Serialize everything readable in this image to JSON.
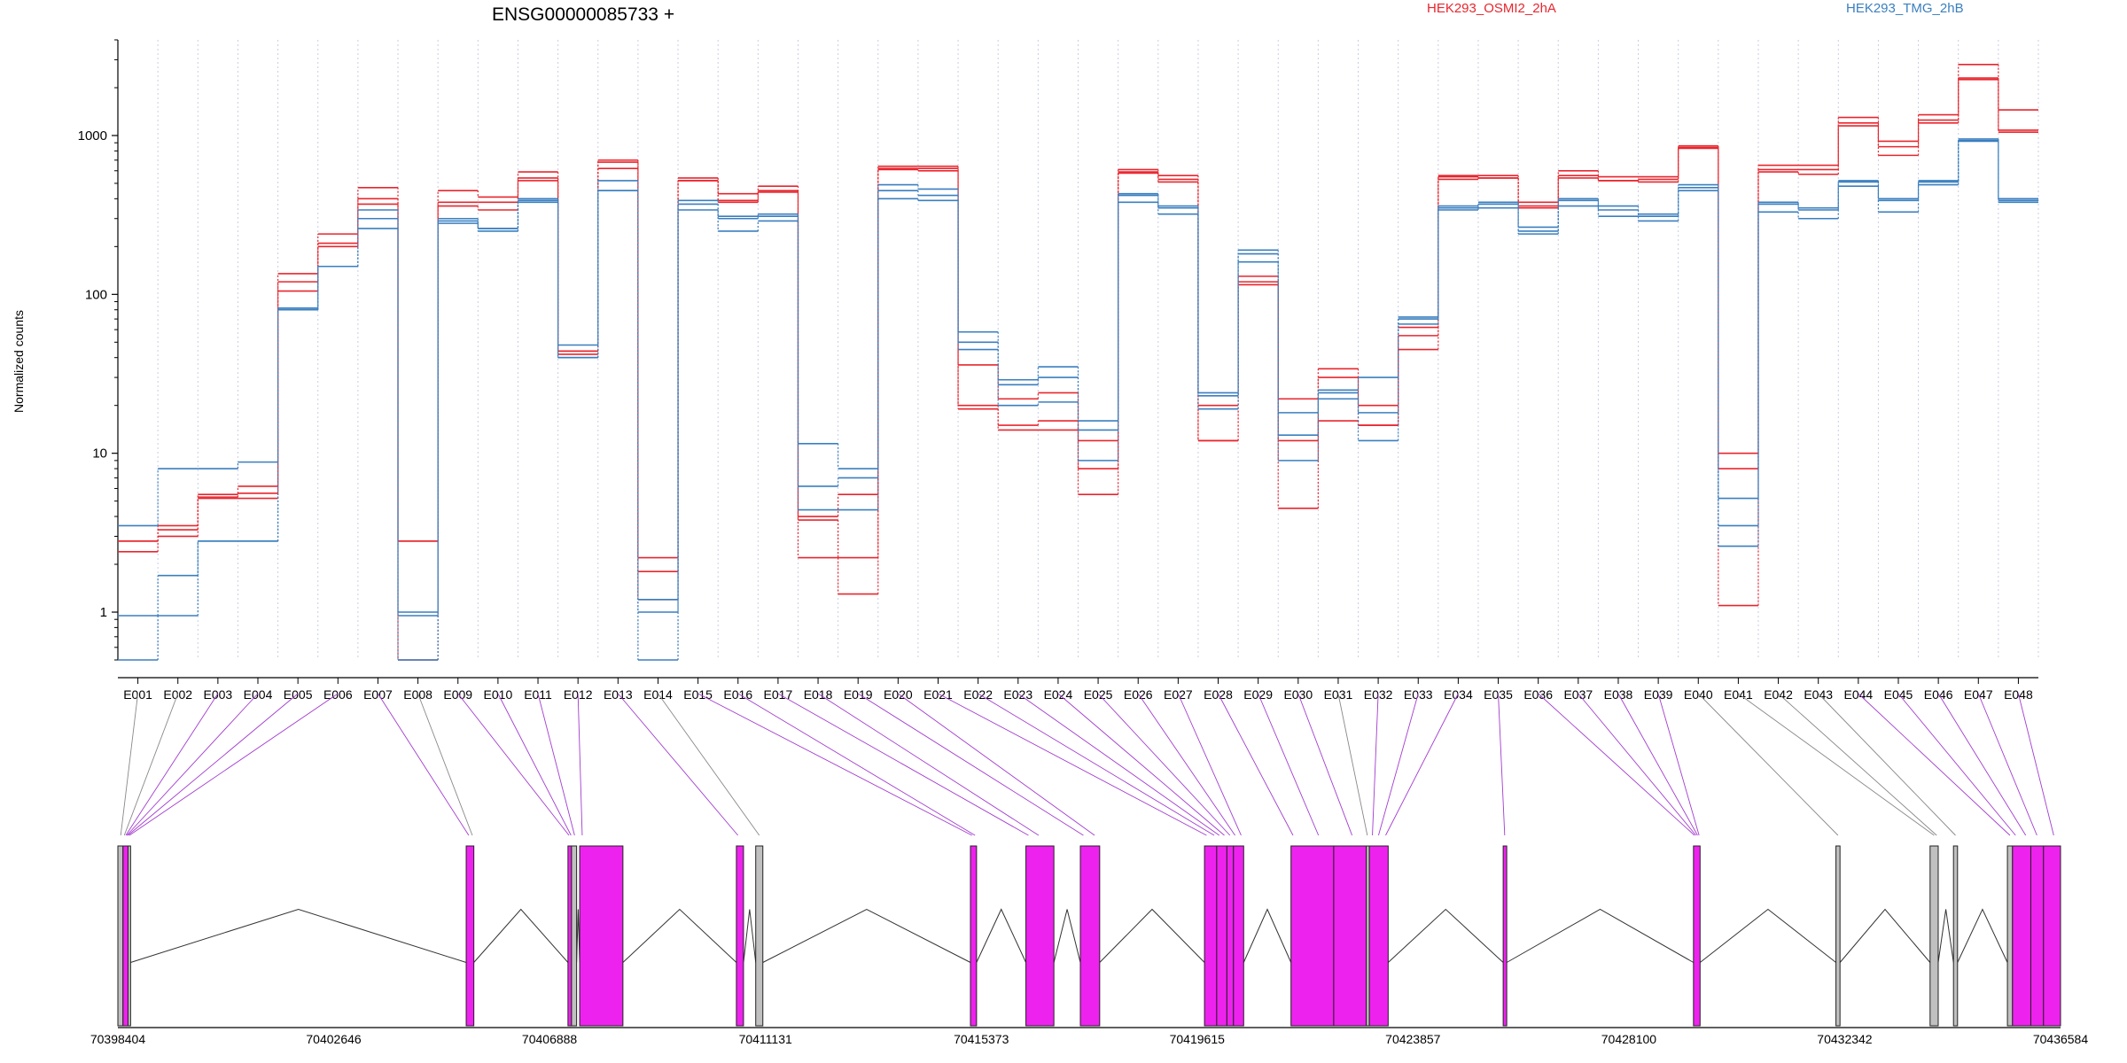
{
  "chart_data": {
    "type": "line",
    "title": "ENSG00000085733 +",
    "ylabel": "Normalized counts",
    "xlabel": "",
    "yscale": "log",
    "ylim": [
      0.5,
      4000
    ],
    "yticks": [
      1,
      10,
      100,
      1000
    ],
    "ytick_labels": [
      "1",
      "10",
      "100",
      "1000"
    ],
    "grid": "vertical-dotted",
    "legend": [
      {
        "name": "HEK293_OSMI2_2hA",
        "color": "#e8262e"
      },
      {
        "name": "HEK293_TMG_2hB",
        "color": "#3a7fbf"
      }
    ],
    "exons": [
      "E001",
      "E002",
      "E003",
      "E004",
      "E005",
      "E006",
      "E007",
      "E008",
      "E009",
      "E010",
      "E011",
      "E012",
      "E013",
      "E014",
      "E015",
      "E016",
      "E017",
      "E018",
      "E019",
      "E020",
      "E021",
      "E022",
      "E023",
      "E024",
      "E025",
      "E026",
      "E027",
      "E028",
      "E029",
      "E030",
      "E031",
      "E032",
      "E033",
      "E034",
      "E035",
      "E036",
      "E037",
      "E038",
      "E039",
      "E040",
      "E041",
      "E042",
      "E043",
      "E044",
      "E045",
      "E046",
      "E047",
      "E048"
    ],
    "series": [
      {
        "name": "HEK293_OSMI2_2hA",
        "color": "#e8262e",
        "values": [
          2.4,
          3.5,
          5.5,
          5.6,
          135,
          240,
          470,
          2.8,
          450,
          410,
          590,
          42,
          700,
          2.2,
          540,
          430,
          480,
          4.0,
          5.5,
          640,
          640,
          36,
          22,
          24,
          12,
          610,
          560,
          20,
          130,
          22,
          34,
          20,
          62,
          560,
          560,
          380,
          600,
          550,
          550,
          860,
          10,
          650,
          650,
          1300,
          920,
          1350,
          2800,
          1450
        ]
      },
      {
        "name": "HEK293_OSMI2_2hA",
        "color": "#e8262e",
        "values": [
          2.8,
          3.3,
          5.2,
          5.2,
          120,
          200,
          400,
          0.5,
          380,
          380,
          540,
          44,
          680,
          1.8,
          520,
          390,
          450,
          3.8,
          2.2,
          620,
          620,
          20,
          15,
          16,
          8,
          590,
          530,
          12,
          120,
          12,
          30,
          15,
          45,
          530,
          540,
          360,
          560,
          520,
          530,
          840,
          8,
          610,
          610,
          1200,
          850,
          1250,
          2300,
          1080
        ]
      },
      {
        "name": "HEK293_OSMI2_2hA",
        "color": "#e8262e",
        "values": [
          2.8,
          3.0,
          5.3,
          6.2,
          105,
          210,
          370,
          2.8,
          360,
          340,
          520,
          44,
          620,
          1.2,
          520,
          380,
          440,
          2.2,
          1.3,
          610,
          600,
          19,
          14,
          14,
          5.5,
          580,
          510,
          12,
          115,
          4.5,
          16,
          15,
          55,
          550,
          540,
          350,
          540,
          520,
          510,
          830,
          1.1,
          590,
          570,
          1150,
          750,
          1200,
          2250,
          1050
        ]
      },
      {
        "name": "HEK293_TMG_2hB",
        "color": "#3a7fbf",
        "values": [
          3.5,
          8.0,
          8.0,
          8.8,
          80,
          150,
          340,
          1.0,
          280,
          250,
          400,
          48,
          520,
          1.2,
          390,
          310,
          320,
          11.5,
          8.0,
          490,
          460,
          58,
          29,
          35,
          16,
          430,
          360,
          24,
          190,
          18,
          25,
          30,
          72,
          360,
          380,
          265,
          400,
          360,
          320,
          490,
          5.2,
          380,
          350,
          520,
          400,
          520,
          950,
          400
        ]
      },
      {
        "name": "HEK293_TMG_2hB",
        "color": "#3a7fbf",
        "values": [
          0.95,
          1.7,
          2.8,
          2.8,
          82,
          150,
          300,
          0.95,
          300,
          260,
          390,
          40,
          450,
          1.0,
          370,
          300,
          310,
          6.2,
          7.0,
          450,
          420,
          50,
          27,
          30,
          14,
          420,
          350,
          23,
          180,
          13,
          24,
          18,
          70,
          350,
          370,
          250,
          390,
          340,
          310,
          470,
          3.5,
          370,
          340,
          510,
          390,
          510,
          930,
          390
        ]
      },
      {
        "name": "HEK293_TMG_2hB",
        "color": "#3a7fbf",
        "values": [
          0.5,
          0.95,
          2.8,
          2.8,
          80,
          150,
          260,
          0.5,
          290,
          260,
          380,
          40,
          450,
          0.5,
          340,
          250,
          290,
          4.4,
          4.4,
          400,
          390,
          45,
          20,
          21,
          9,
          380,
          320,
          19,
          160,
          9,
          22,
          12,
          65,
          340,
          350,
          240,
          360,
          310,
          290,
          450,
          2.6,
          330,
          300,
          480,
          330,
          490,
          920,
          380
        ]
      }
    ],
    "genome_axis": {
      "ticks": [
        70398404,
        70402646,
        70406888,
        70411131,
        70415373,
        70419615,
        70423857,
        70428100,
        70432342,
        70436584
      ],
      "tick_labels": [
        "70398404",
        "70402646",
        "70406888",
        "70411131",
        "70415373",
        "70419615",
        "70423857",
        "70428100",
        "70432342",
        "70436584"
      ],
      "range": [
        70398404,
        70436584
      ]
    },
    "exon_map": {
      "highlight_color": "#ee22ee",
      "default_color": "#c0c0c0",
      "blocks": [
        {
          "start": 70398404,
          "end": 70398504,
          "highlight": false
        },
        {
          "start": 70398504,
          "end": 70398604,
          "highlight": true
        },
        {
          "start": 70398604,
          "end": 70398654,
          "highlight": false
        },
        {
          "start": 70405250,
          "end": 70405400,
          "highlight": true
        },
        {
          "start": 70407250,
          "end": 70407320,
          "highlight": true
        },
        {
          "start": 70407320,
          "end": 70407420,
          "highlight": false
        },
        {
          "start": 70407480,
          "end": 70408330,
          "highlight": true
        },
        {
          "start": 70410560,
          "end": 70410700,
          "highlight": true
        },
        {
          "start": 70410940,
          "end": 70411080,
          "highlight": false
        },
        {
          "start": 70415160,
          "end": 70415280,
          "highlight": true
        },
        {
          "start": 70416250,
          "end": 70416800,
          "highlight": true
        },
        {
          "start": 70417320,
          "end": 70417700,
          "highlight": true
        },
        {
          "start": 70419760,
          "end": 70420000,
          "highlight": true
        },
        {
          "start": 70420000,
          "end": 70420200,
          "highlight": true
        },
        {
          "start": 70420200,
          "end": 70420330,
          "highlight": true
        },
        {
          "start": 70420330,
          "end": 70420530,
          "highlight": true
        },
        {
          "start": 70421460,
          "end": 70422300,
          "highlight": true
        },
        {
          "start": 70422300,
          "end": 70422940,
          "highlight": true
        },
        {
          "start": 70422940,
          "end": 70423000,
          "highlight": false
        },
        {
          "start": 70423000,
          "end": 70423370,
          "highlight": true
        },
        {
          "start": 70425630,
          "end": 70425700,
          "highlight": true
        },
        {
          "start": 70429370,
          "end": 70429500,
          "highlight": true
        },
        {
          "start": 70432170,
          "end": 70432250,
          "highlight": false
        },
        {
          "start": 70434020,
          "end": 70434180,
          "highlight": false
        },
        {
          "start": 70434480,
          "end": 70434560,
          "highlight": false
        },
        {
          "start": 70435540,
          "end": 70435640,
          "highlight": false
        },
        {
          "start": 70435640,
          "end": 70436000,
          "highlight": true
        },
        {
          "start": 70436000,
          "end": 70436250,
          "highlight": true
        },
        {
          "start": 70436250,
          "end": 70436584,
          "highlight": true
        }
      ],
      "introns": [
        [
          70398654,
          70405250
        ],
        [
          70405400,
          70407250
        ],
        [
          70407420,
          70407480
        ],
        [
          70408330,
          70410560
        ],
        [
          70410700,
          70410940
        ],
        [
          70411080,
          70415160
        ],
        [
          70415280,
          70416250
        ],
        [
          70416800,
          70417320
        ],
        [
          70417700,
          70419760
        ],
        [
          70420530,
          70421460
        ],
        [
          70423370,
          70425630
        ],
        [
          70425700,
          70429370
        ],
        [
          70429500,
          70432170
        ],
        [
          70432250,
          70434020
        ],
        [
          70434180,
          70434480
        ],
        [
          70434560,
          70435540
        ]
      ],
      "exon_links": [
        {
          "exon": "E001",
          "pos": 70398460,
          "highlight": false
        },
        {
          "exon": "E002",
          "pos": 70398530,
          "highlight": false
        },
        {
          "exon": "E003",
          "pos": 70398560,
          "highlight": true
        },
        {
          "exon": "E004",
          "pos": 70398580,
          "highlight": true
        },
        {
          "exon": "E005",
          "pos": 70398600,
          "highlight": true
        },
        {
          "exon": "E006",
          "pos": 70398630,
          "highlight": true
        },
        {
          "exon": "E007",
          "pos": 70405300,
          "highlight": true
        },
        {
          "exon": "E008",
          "pos": 70405370,
          "highlight": false
        },
        {
          "exon": "E009",
          "pos": 70407270,
          "highlight": true
        },
        {
          "exon": "E010",
          "pos": 70407310,
          "highlight": true
        },
        {
          "exon": "E011",
          "pos": 70407380,
          "highlight": true
        },
        {
          "exon": "E012",
          "pos": 70407530,
          "highlight": true
        },
        {
          "exon": "E013",
          "pos": 70410590,
          "highlight": true
        },
        {
          "exon": "E014",
          "pos": 70411010,
          "highlight": false
        },
        {
          "exon": "E015",
          "pos": 70415190,
          "highlight": true
        },
        {
          "exon": "E016",
          "pos": 70415250,
          "highlight": true
        },
        {
          "exon": "E017",
          "pos": 70416300,
          "highlight": true
        },
        {
          "exon": "E018",
          "pos": 70416500,
          "highlight": true
        },
        {
          "exon": "E019",
          "pos": 70417380,
          "highlight": true
        },
        {
          "exon": "E020",
          "pos": 70417600,
          "highlight": true
        },
        {
          "exon": "E021",
          "pos": 70419800,
          "highlight": true
        },
        {
          "exon": "E022",
          "pos": 70419950,
          "highlight": true
        },
        {
          "exon": "E023",
          "pos": 70420050,
          "highlight": true
        },
        {
          "exon": "E024",
          "pos": 70420150,
          "highlight": true
        },
        {
          "exon": "E025",
          "pos": 70420260,
          "highlight": true
        },
        {
          "exon": "E026",
          "pos": 70420360,
          "highlight": true
        },
        {
          "exon": "E027",
          "pos": 70420480,
          "highlight": true
        },
        {
          "exon": "E028",
          "pos": 70421500,
          "highlight": true
        },
        {
          "exon": "E029",
          "pos": 70422000,
          "highlight": true
        },
        {
          "exon": "E030",
          "pos": 70422660,
          "highlight": true
        },
        {
          "exon": "E031",
          "pos": 70422960,
          "highlight": false
        },
        {
          "exon": "E032",
          "pos": 70423060,
          "highlight": true
        },
        {
          "exon": "E033",
          "pos": 70423180,
          "highlight": true
        },
        {
          "exon": "E034",
          "pos": 70423320,
          "highlight": true
        },
        {
          "exon": "E035",
          "pos": 70425660,
          "highlight": true
        },
        {
          "exon": "E036",
          "pos": 70429390,
          "highlight": true
        },
        {
          "exon": "E037",
          "pos": 70429420,
          "highlight": true
        },
        {
          "exon": "E038",
          "pos": 70429450,
          "highlight": true
        },
        {
          "exon": "E039",
          "pos": 70429480,
          "highlight": true
        },
        {
          "exon": "E040",
          "pos": 70432210,
          "highlight": false
        },
        {
          "exon": "E041",
          "pos": 70434100,
          "highlight": false
        },
        {
          "exon": "E042",
          "pos": 70434150,
          "highlight": false
        },
        {
          "exon": "E043",
          "pos": 70434520,
          "highlight": false
        },
        {
          "exon": "E044",
          "pos": 70435590,
          "highlight": true
        },
        {
          "exon": "E045",
          "pos": 70435700,
          "highlight": true
        },
        {
          "exon": "E046",
          "pos": 70435900,
          "highlight": true
        },
        {
          "exon": "E047",
          "pos": 70436120,
          "highlight": true
        },
        {
          "exon": "E048",
          "pos": 70436450,
          "highlight": true
        }
      ]
    }
  }
}
